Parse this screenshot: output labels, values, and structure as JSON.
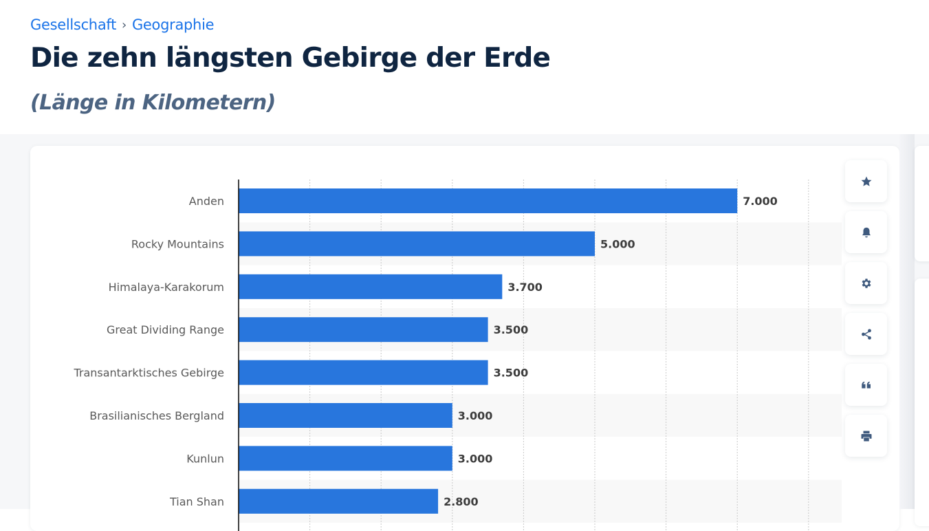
{
  "breadcrumb": {
    "items": [
      "Gesellschaft",
      "Geographie"
    ],
    "separator": "›"
  },
  "header": {
    "title": "Die zehn längsten Gebirge der Erde",
    "subtitle": "(Länge in Kilometern)"
  },
  "toolbar": {
    "buttons": [
      {
        "name": "favorite",
        "icon": "star-icon"
      },
      {
        "name": "notification",
        "icon": "bell-icon"
      },
      {
        "name": "settings",
        "icon": "gear-icon"
      },
      {
        "name": "share",
        "icon": "share-icon"
      },
      {
        "name": "cite",
        "icon": "quote-icon"
      },
      {
        "name": "print",
        "icon": "printer-icon"
      }
    ]
  },
  "colors": {
    "bar": "#2876dd",
    "stripe": "#f8f8f8",
    "axis": "#000000",
    "grid": "#c9c9c9"
  },
  "chart_data": {
    "type": "bar",
    "orientation": "horizontal",
    "title": "Die zehn längsten Gebirge der Erde",
    "subtitle": "(Länge in Kilometern)",
    "xlabel": "",
    "ylabel": "",
    "categories": [
      "Anden",
      "Rocky Mountains",
      "Himalaya-Karakorum",
      "Great Dividing Range",
      "Transantarktisches Gebirge",
      "Brasilianisches Bergland",
      "Kunlun",
      "Tian Shan"
    ],
    "values": [
      7000,
      5000,
      3700,
      3500,
      3500,
      3000,
      3000,
      2800
    ],
    "value_labels": [
      "7.000",
      "5.000",
      "3.700",
      "3.500",
      "3.500",
      "3.000",
      "3.000",
      "2.800"
    ],
    "xlim": [
      0,
      8000
    ],
    "grid_step": 1000,
    "grid": true,
    "striped_rows": true,
    "legend": "none"
  }
}
